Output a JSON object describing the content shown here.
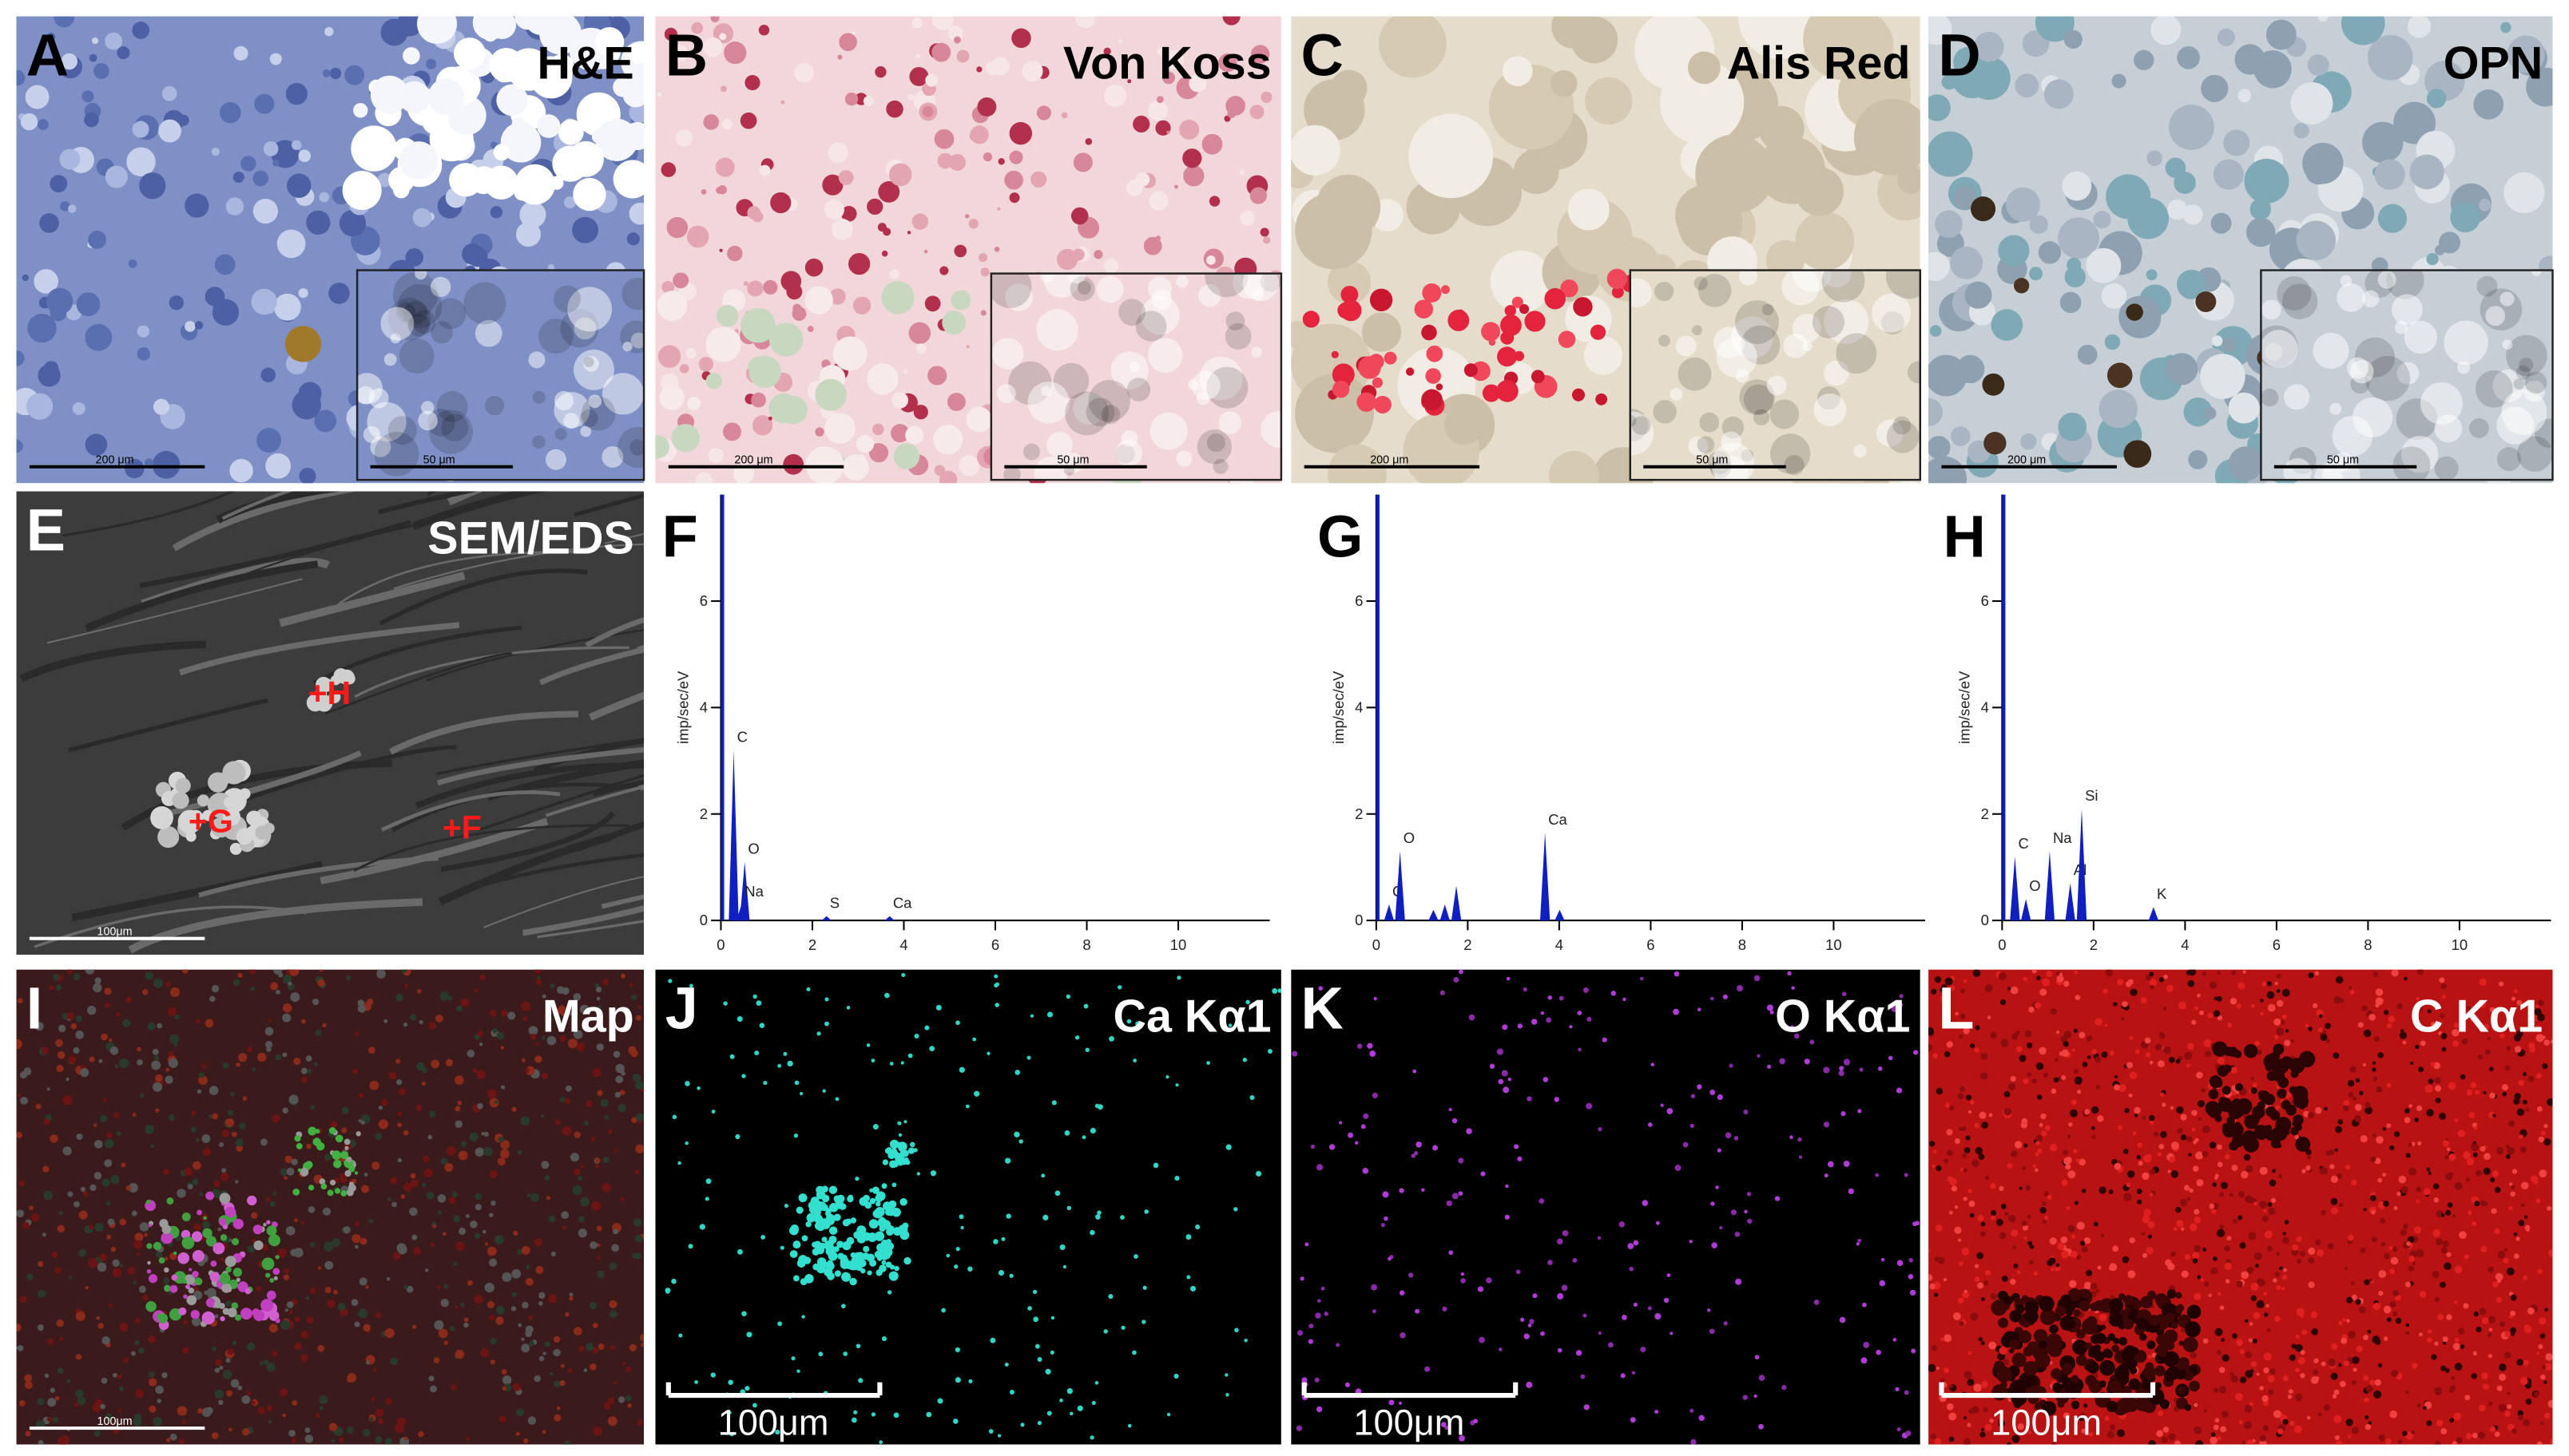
{
  "panels": [
    {
      "letter": "A",
      "label": "H&E",
      "scale": "200 μm",
      "inset_scale": "50 μm"
    },
    {
      "letter": "B",
      "label": "Von Koss",
      "scale": "200 μm",
      "inset_scale": "50 μm"
    },
    {
      "letter": "C",
      "label": "Alis Red",
      "scale": "200 μm",
      "inset_scale": "50 μm"
    },
    {
      "letter": "D",
      "label": "OPN",
      "scale": "200 μm",
      "inset_scale": "50 μm"
    },
    {
      "letter": "E",
      "label": "SEM/EDS",
      "scale": "100μm",
      "markers": [
        "+H",
        "+G",
        "+F"
      ]
    },
    {
      "letter": "I",
      "label": "Map",
      "scale": "100μm"
    },
    {
      "letter": "J",
      "label": "Ca Kα1",
      "scale": "100μm"
    },
    {
      "letter": "K",
      "label": "O Kα1",
      "scale": "100μm"
    },
    {
      "letter": "L",
      "label": "C Kα1",
      "scale": "100μm"
    }
  ],
  "spectra": [
    {
      "letter": "F",
      "ylabel": "imp/sec/eV",
      "xlim": [
        0,
        12
      ],
      "ylim": [
        0,
        8
      ],
      "xticks": [
        0,
        2,
        4,
        6,
        8,
        10
      ],
      "yticks": [
        0,
        2,
        4,
        6
      ],
      "peaks": [
        {
          "label": "C",
          "energy": 0.28,
          "height": 3.2
        },
        {
          "label": "O",
          "energy": 0.52,
          "height": 1.1
        },
        {
          "label": "Na",
          "energy": 0.45,
          "height": 0.3
        },
        {
          "label": "S",
          "energy": 2.31,
          "height": 0.08
        },
        {
          "label": "Ca",
          "energy": 3.69,
          "height": 0.08
        }
      ]
    },
    {
      "letter": "G",
      "ylabel": "imp/sec/eV",
      "xlim": [
        0,
        12
      ],
      "ylim": [
        0,
        8
      ],
      "xticks": [
        0,
        2,
        4,
        6,
        8,
        10
      ],
      "yticks": [
        0,
        2,
        4,
        6
      ],
      "peaks": [
        {
          "label": "C",
          "energy": 0.28,
          "height": 0.3
        },
        {
          "label": "O",
          "energy": 0.52,
          "height": 1.3
        },
        {
          "label": null,
          "energy": 1.25,
          "height": 0.2
        },
        {
          "label": null,
          "energy": 1.5,
          "height": 0.3
        },
        {
          "label": null,
          "energy": 1.75,
          "height": 0.65
        },
        {
          "label": "Ca",
          "energy": 3.69,
          "height": 1.65
        },
        {
          "label": null,
          "energy": 4.01,
          "height": 0.2
        }
      ]
    },
    {
      "letter": "H",
      "ylabel": "imp/sec/eV",
      "xlim": [
        0,
        12
      ],
      "ylim": [
        0,
        8
      ],
      "xticks": [
        0,
        2,
        4,
        6,
        8,
        10
      ],
      "yticks": [
        0,
        2,
        4,
        6
      ],
      "peaks": [
        {
          "label": "C",
          "energy": 0.28,
          "height": 1.2
        },
        {
          "label": "O",
          "energy": 0.52,
          "height": 0.4
        },
        {
          "label": "Na",
          "energy": 1.04,
          "height": 1.3
        },
        {
          "label": "Al",
          "energy": 1.49,
          "height": 0.7
        },
        {
          "label": "Si",
          "energy": 1.74,
          "height": 2.1
        },
        {
          "label": "K",
          "energy": 3.31,
          "height": 0.25
        }
      ]
    }
  ]
}
